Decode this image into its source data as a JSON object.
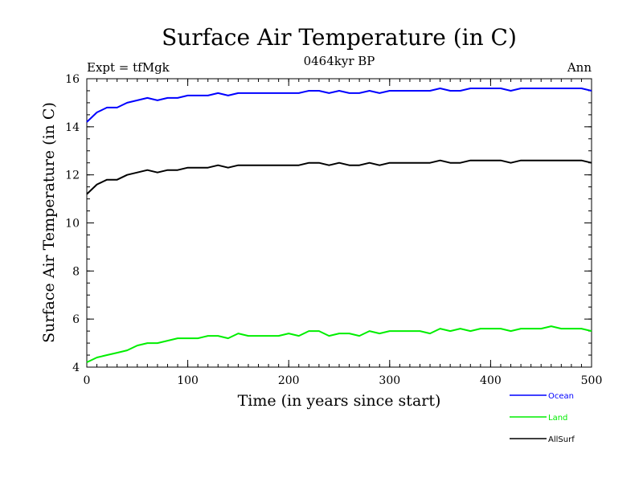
{
  "chart_data": {
    "type": "line",
    "title": "Surface Air Temperature (in C)",
    "subtitle": "0464kyr BP",
    "left_note": "Expt = tfMgk",
    "right_note": "Ann",
    "xlabel": "Time (in years since start)",
    "ylabel": "Surface Air Temperature (in C)",
    "xlim": [
      0,
      500
    ],
    "ylim": [
      4,
      16
    ],
    "xticks": [
      0,
      100,
      200,
      300,
      400,
      500
    ],
    "yticks": [
      4,
      6,
      8,
      10,
      12,
      14,
      16
    ],
    "grid": false,
    "legend_position": "bottom-right",
    "x": [
      0,
      10,
      20,
      30,
      40,
      50,
      60,
      70,
      80,
      90,
      100,
      110,
      120,
      130,
      140,
      150,
      160,
      170,
      180,
      190,
      200,
      210,
      220,
      230,
      240,
      250,
      260,
      270,
      280,
      290,
      300,
      310,
      320,
      330,
      340,
      350,
      360,
      370,
      380,
      390,
      400,
      410,
      420,
      430,
      440,
      450,
      460,
      470,
      480,
      490,
      500
    ],
    "series": [
      {
        "name": "Ocean",
        "color": "#0000ff",
        "values": [
          14.2,
          14.6,
          14.8,
          14.8,
          15.0,
          15.1,
          15.2,
          15.1,
          15.2,
          15.2,
          15.3,
          15.3,
          15.3,
          15.4,
          15.3,
          15.4,
          15.4,
          15.4,
          15.4,
          15.4,
          15.4,
          15.4,
          15.5,
          15.5,
          15.4,
          15.5,
          15.4,
          15.4,
          15.5,
          15.4,
          15.5,
          15.5,
          15.5,
          15.5,
          15.5,
          15.6,
          15.5,
          15.5,
          15.6,
          15.6,
          15.6,
          15.6,
          15.5,
          15.6,
          15.6,
          15.6,
          15.6,
          15.6,
          15.6,
          15.6,
          15.5
        ]
      },
      {
        "name": "Land",
        "color": "#00ee00",
        "values": [
          4.2,
          4.4,
          4.5,
          4.6,
          4.7,
          4.9,
          5.0,
          5.0,
          5.1,
          5.2,
          5.2,
          5.2,
          5.3,
          5.3,
          5.2,
          5.4,
          5.3,
          5.3,
          5.3,
          5.3,
          5.4,
          5.3,
          5.5,
          5.5,
          5.3,
          5.4,
          5.4,
          5.3,
          5.5,
          5.4,
          5.5,
          5.5,
          5.5,
          5.5,
          5.4,
          5.6,
          5.5,
          5.6,
          5.5,
          5.6,
          5.6,
          5.6,
          5.5,
          5.6,
          5.6,
          5.6,
          5.7,
          5.6,
          5.6,
          5.6,
          5.5
        ]
      },
      {
        "name": "AllSurf",
        "color": "#000000",
        "values": [
          11.2,
          11.6,
          11.8,
          11.8,
          12.0,
          12.1,
          12.2,
          12.1,
          12.2,
          12.2,
          12.3,
          12.3,
          12.3,
          12.4,
          12.3,
          12.4,
          12.4,
          12.4,
          12.4,
          12.4,
          12.4,
          12.4,
          12.5,
          12.5,
          12.4,
          12.5,
          12.4,
          12.4,
          12.5,
          12.4,
          12.5,
          12.5,
          12.5,
          12.5,
          12.5,
          12.6,
          12.5,
          12.5,
          12.6,
          12.6,
          12.6,
          12.6,
          12.5,
          12.6,
          12.6,
          12.6,
          12.6,
          12.6,
          12.6,
          12.6,
          12.5
        ]
      }
    ]
  }
}
